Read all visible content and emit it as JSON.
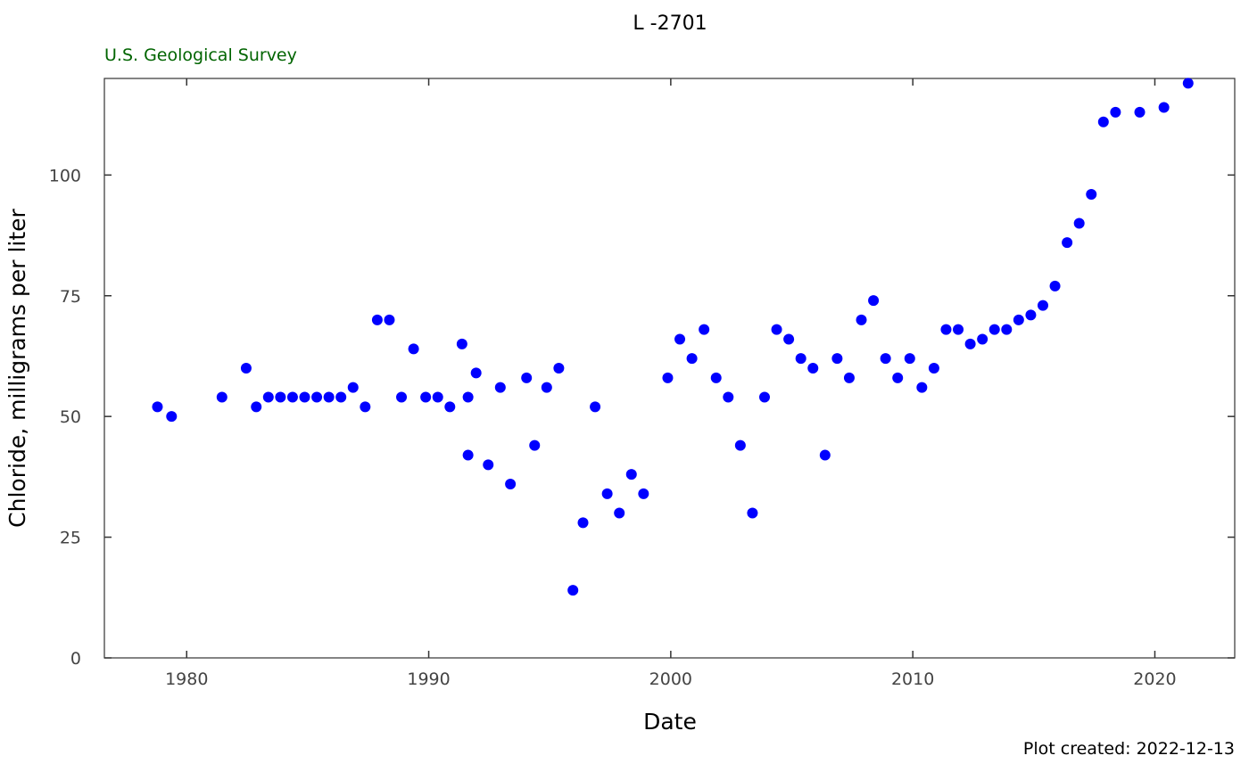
{
  "chart_data": {
    "type": "scatter",
    "title": "L  -2701",
    "subtitle": "U.S. Geological Survey",
    "xlabel": "Date",
    "ylabel": "Chloride, milligrams per liter",
    "footer": "Plot created: 2022-12-13",
    "xlim": [
      1976.6,
      2023.3
    ],
    "ylim": [
      0,
      120
    ],
    "x_ticks": [
      1980,
      1990,
      2000,
      2010,
      2020
    ],
    "y_ticks": [
      0,
      25,
      50,
      75,
      100
    ],
    "grid": false,
    "point_color": "#0000ff",
    "subtitle_color": "#006400",
    "points": [
      {
        "x": "1978-10",
        "y": 52
      },
      {
        "x": "1979-05",
        "y": 50
      },
      {
        "x": "1981-06",
        "y": 54
      },
      {
        "x": "1982-06",
        "y": 60
      },
      {
        "x": "1982-11",
        "y": 52
      },
      {
        "x": "1983-05",
        "y": 54
      },
      {
        "x": "1983-11",
        "y": 54
      },
      {
        "x": "1984-05",
        "y": 54
      },
      {
        "x": "1984-11",
        "y": 54
      },
      {
        "x": "1985-05",
        "y": 54
      },
      {
        "x": "1985-11",
        "y": 54
      },
      {
        "x": "1986-05",
        "y": 54
      },
      {
        "x": "1986-11",
        "y": 56
      },
      {
        "x": "1987-05",
        "y": 52
      },
      {
        "x": "1987-11",
        "y": 70
      },
      {
        "x": "1988-05",
        "y": 70
      },
      {
        "x": "1988-11",
        "y": 54
      },
      {
        "x": "1989-05",
        "y": 64
      },
      {
        "x": "1989-11",
        "y": 54
      },
      {
        "x": "1990-05",
        "y": 54
      },
      {
        "x": "1990-11",
        "y": 52
      },
      {
        "x": "1991-05",
        "y": 65
      },
      {
        "x": "1991-08",
        "y": 54
      },
      {
        "x": "1991-08",
        "y": 42
      },
      {
        "x": "1991-12",
        "y": 59
      },
      {
        "x": "1992-06",
        "y": 40
      },
      {
        "x": "1992-12",
        "y": 56
      },
      {
        "x": "1993-05",
        "y": 36
      },
      {
        "x": "1994-01",
        "y": 58
      },
      {
        "x": "1994-05",
        "y": 44
      },
      {
        "x": "1994-11",
        "y": 56
      },
      {
        "x": "1995-05",
        "y": 60
      },
      {
        "x": "1995-12",
        "y": 14
      },
      {
        "x": "1996-05",
        "y": 28
      },
      {
        "x": "1996-11",
        "y": 52
      },
      {
        "x": "1997-05",
        "y": 34
      },
      {
        "x": "1997-11",
        "y": 30
      },
      {
        "x": "1998-05",
        "y": 38
      },
      {
        "x": "1998-11",
        "y": 34
      },
      {
        "x": "1999-11",
        "y": 58
      },
      {
        "x": "2000-05",
        "y": 66
      },
      {
        "x": "2000-11",
        "y": 62
      },
      {
        "x": "2001-05",
        "y": 68
      },
      {
        "x": "2001-11",
        "y": 58
      },
      {
        "x": "2002-05",
        "y": 54
      },
      {
        "x": "2002-11",
        "y": 44
      },
      {
        "x": "2003-05",
        "y": 30
      },
      {
        "x": "2003-11",
        "y": 54
      },
      {
        "x": "2004-05",
        "y": 68
      },
      {
        "x": "2004-11",
        "y": 66
      },
      {
        "x": "2005-05",
        "y": 62
      },
      {
        "x": "2005-11",
        "y": 60
      },
      {
        "x": "2006-05",
        "y": 42
      },
      {
        "x": "2006-11",
        "y": 62
      },
      {
        "x": "2007-05",
        "y": 58
      },
      {
        "x": "2007-11",
        "y": 70
      },
      {
        "x": "2008-05",
        "y": 74
      },
      {
        "x": "2008-11",
        "y": 62
      },
      {
        "x": "2009-05",
        "y": 58
      },
      {
        "x": "2009-11",
        "y": 62
      },
      {
        "x": "2010-05",
        "y": 56
      },
      {
        "x": "2010-11",
        "y": 60
      },
      {
        "x": "2011-05",
        "y": 68
      },
      {
        "x": "2011-11",
        "y": 68
      },
      {
        "x": "2012-05",
        "y": 65
      },
      {
        "x": "2012-11",
        "y": 66
      },
      {
        "x": "2013-05",
        "y": 68
      },
      {
        "x": "2013-11",
        "y": 68
      },
      {
        "x": "2014-05",
        "y": 70
      },
      {
        "x": "2014-11",
        "y": 71
      },
      {
        "x": "2015-05",
        "y": 73
      },
      {
        "x": "2015-11",
        "y": 77
      },
      {
        "x": "2016-05",
        "y": 86
      },
      {
        "x": "2016-11",
        "y": 90
      },
      {
        "x": "2017-05",
        "y": 96
      },
      {
        "x": "2017-11",
        "y": 111
      },
      {
        "x": "2018-05",
        "y": 113
      },
      {
        "x": "2019-05",
        "y": 113
      },
      {
        "x": "2020-05",
        "y": 114
      },
      {
        "x": "2021-05",
        "y": 119
      }
    ]
  }
}
